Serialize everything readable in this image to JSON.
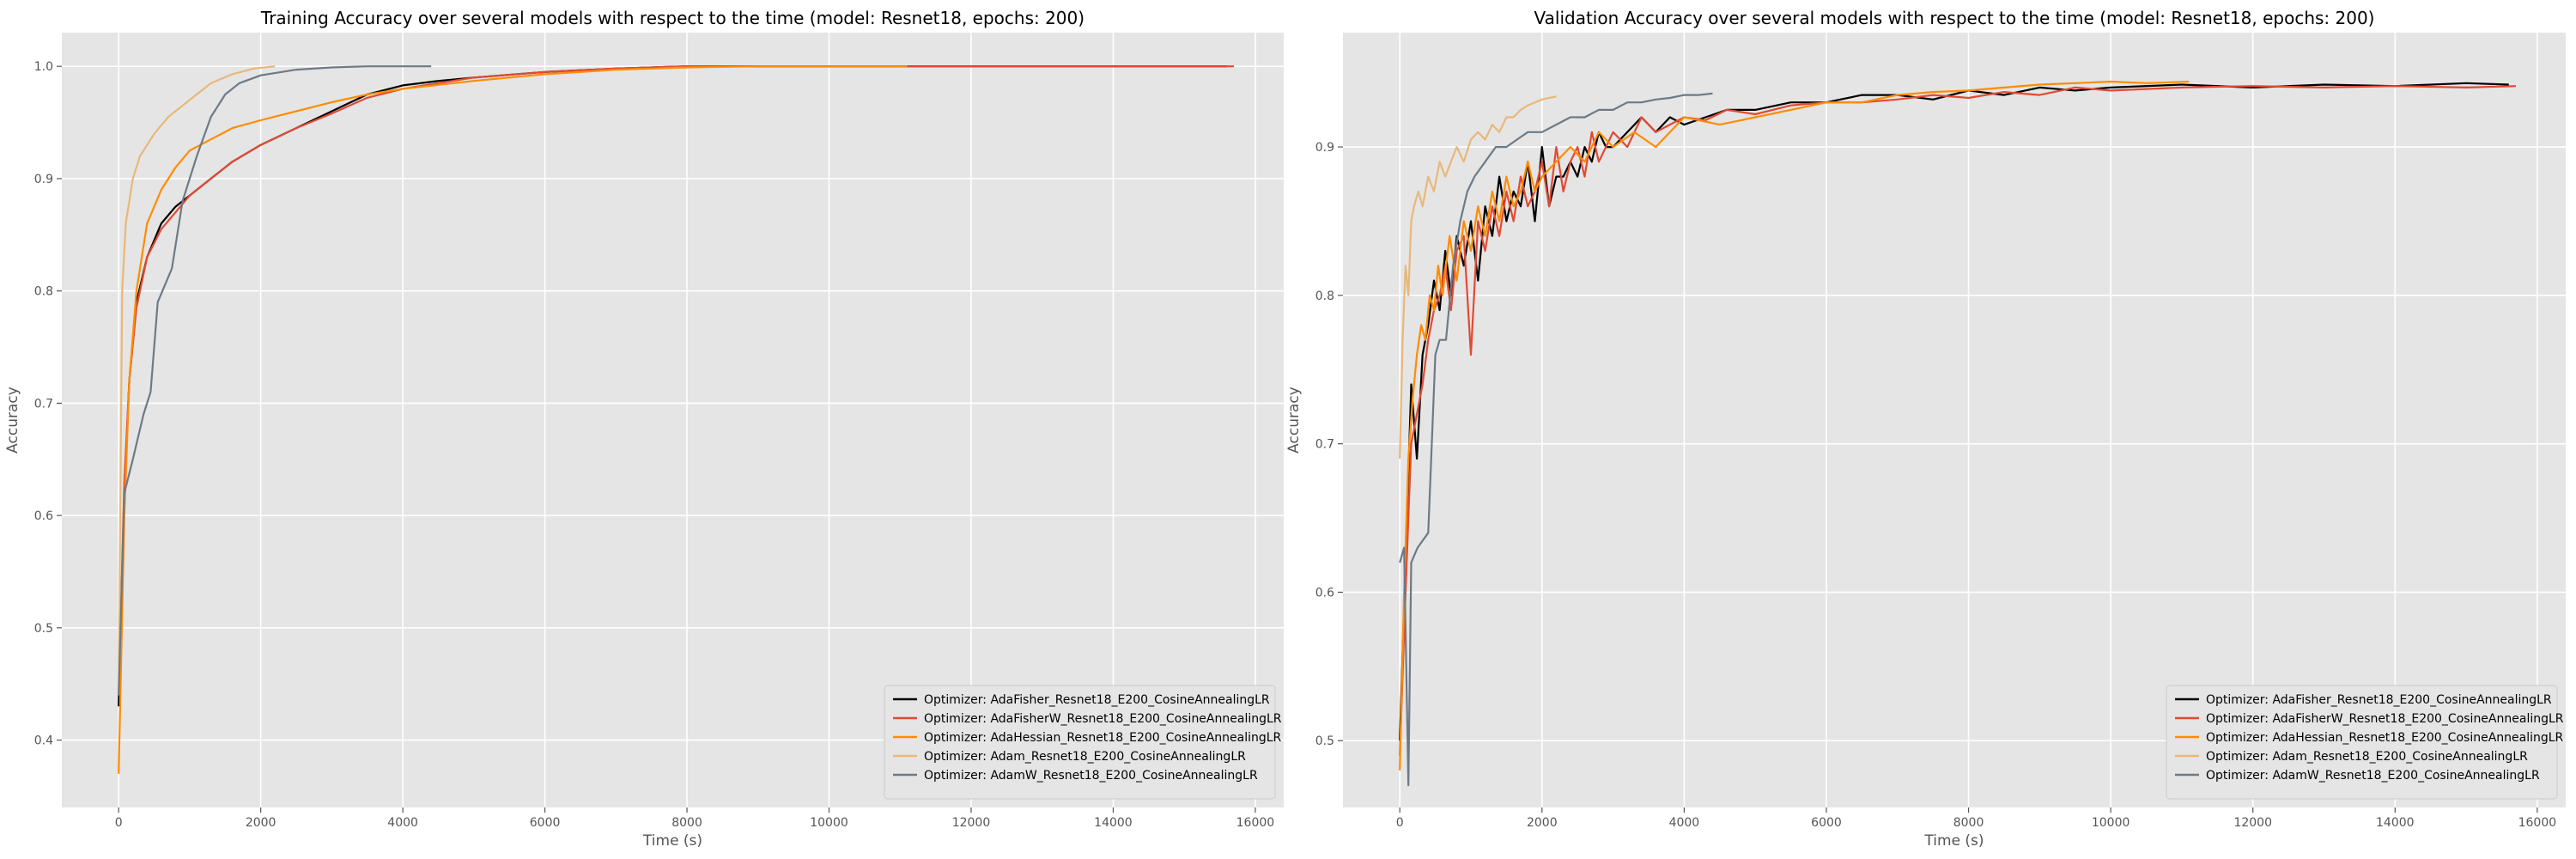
{
  "chart_data": [
    {
      "type": "line",
      "title": "Training Accuracy over several models with respect to the time (model: Resnet18, epochs: 200)",
      "xlabel": "Time (s)",
      "ylabel": "Accuracy",
      "xlim": [
        -800,
        16400
      ],
      "ylim": [
        0.34,
        1.03
      ],
      "xticks": [
        0,
        2000,
        4000,
        6000,
        8000,
        10000,
        12000,
        14000,
        16000
      ],
      "xtick_labels": [
        "0",
        "2000",
        "4000",
        "6000",
        "8000",
        "10000",
        "12000",
        "14000",
        "16000"
      ],
      "yticks": [
        0.4,
        0.5,
        0.6,
        0.7,
        0.8,
        0.9,
        1.0
      ],
      "ytick_labels": [
        "0.4",
        "0.5",
        "0.6",
        "0.7",
        "0.8",
        "0.9",
        "1.0"
      ],
      "grid": true,
      "legend_position": "bottom-right",
      "series": [
        {
          "name": "Optimizer: AdaFisher_Resnet18_E200_CosineAnnealingLR",
          "color": "#000000",
          "x": [
            0,
            80,
            150,
            250,
            400,
            600,
            800,
            1000,
            1300,
            1600,
            2000,
            2500,
            3000,
            3500,
            4000,
            4500,
            5000,
            6000,
            7000,
            8000,
            10000,
            12000,
            15600
          ],
          "y": [
            0.43,
            0.62,
            0.72,
            0.79,
            0.83,
            0.86,
            0.875,
            0.885,
            0.9,
            0.915,
            0.93,
            0.945,
            0.96,
            0.975,
            0.983,
            0.987,
            0.99,
            0.995,
            0.998,
            1.0,
            1.0,
            1.0,
            1.0
          ]
        },
        {
          "name": "Optimizer: AdaFisherW_Resnet18_E200_CosineAnnealingLR",
          "color": "#e24a33",
          "x": [
            0,
            80,
            150,
            250,
            400,
            600,
            800,
            1000,
            1300,
            1600,
            2000,
            2500,
            3000,
            3500,
            4000,
            4500,
            5000,
            6000,
            7000,
            8000,
            10000,
            12000,
            15700
          ],
          "y": [
            0.44,
            0.63,
            0.72,
            0.785,
            0.83,
            0.855,
            0.87,
            0.885,
            0.9,
            0.915,
            0.93,
            0.945,
            0.958,
            0.972,
            0.98,
            0.985,
            0.99,
            0.995,
            0.998,
            1.0,
            1.0,
            1.0,
            1.0
          ]
        },
        {
          "name": "Optimizer: AdaHessian_Resnet18_E200_CosineAnnealingLR",
          "color": "#ff8c00",
          "x": [
            0,
            80,
            150,
            250,
            400,
            600,
            800,
            1000,
            1300,
            1600,
            2000,
            2500,
            3000,
            3500,
            4000,
            5000,
            6000,
            7000,
            8000,
            9000,
            10000,
            11100
          ],
          "y": [
            0.37,
            0.6,
            0.72,
            0.8,
            0.86,
            0.89,
            0.91,
            0.925,
            0.935,
            0.945,
            0.952,
            0.96,
            0.968,
            0.975,
            0.98,
            0.987,
            0.993,
            0.997,
            0.999,
            1.0,
            1.0,
            1.0
          ]
        },
        {
          "name": "Optimizer: Adam_Resnet18_E200_CosineAnnealingLR",
          "color": "#e8b87a",
          "x": [
            0,
            50,
            100,
            200,
            300,
            500,
            700,
            1000,
            1300,
            1600,
            1900,
            2200
          ],
          "y": [
            0.44,
            0.8,
            0.86,
            0.9,
            0.92,
            0.94,
            0.955,
            0.97,
            0.985,
            0.993,
            0.998,
            1.0
          ]
        },
        {
          "name": "Optimizer: AdamW_Resnet18_E200_CosineAnnealingLR",
          "color": "#6d7a86",
          "x": [
            0,
            80,
            200,
            350,
            450,
            550,
            750,
            900,
            1100,
            1300,
            1500,
            1700,
            2000,
            2500,
            3000,
            3500,
            4400
          ],
          "y": [
            0.44,
            0.62,
            0.65,
            0.69,
            0.71,
            0.79,
            0.82,
            0.88,
            0.92,
            0.955,
            0.975,
            0.985,
            0.992,
            0.997,
            0.999,
            1.0,
            1.0
          ]
        }
      ]
    },
    {
      "type": "line",
      "title": "Validation Accuracy over several models with respect to the time (model: Resnet18, epochs: 200)",
      "xlabel": "Time (s)",
      "ylabel": "Accuracy",
      "xlim": [
        -800,
        16400
      ],
      "ylim": [
        0.455,
        0.977
      ],
      "xticks": [
        0,
        2000,
        4000,
        6000,
        8000,
        10000,
        12000,
        14000,
        16000
      ],
      "xtick_labels": [
        "0",
        "2000",
        "4000",
        "6000",
        "8000",
        "10000",
        "12000",
        "14000",
        "16000"
      ],
      "yticks": [
        0.5,
        0.6,
        0.7,
        0.8,
        0.9
      ],
      "ytick_labels": [
        "0.5",
        "0.6",
        "0.7",
        "0.8",
        "0.9"
      ],
      "grid": true,
      "legend_position": "bottom-right",
      "series": [
        {
          "name": "Optimizer: AdaFisher_Resnet18_E200_CosineAnnealingLR",
          "color": "#000000",
          "x": [
            0,
            80,
            160,
            240,
            320,
            400,
            480,
            560,
            640,
            720,
            800,
            900,
            1000,
            1100,
            1200,
            1300,
            1400,
            1500,
            1600,
            1700,
            1800,
            1900,
            2000,
            2100,
            2200,
            2300,
            2400,
            2500,
            2600,
            2700,
            2800,
            2900,
            3000,
            3200,
            3400,
            3600,
            3800,
            4000,
            4300,
            4600,
            5000,
            5500,
            6000,
            6500,
            7000,
            7500,
            8000,
            8500,
            9000,
            9500,
            10000,
            11000,
            12000,
            13000,
            14000,
            15000,
            15600
          ],
          "y": [
            0.5,
            0.62,
            0.74,
            0.69,
            0.76,
            0.78,
            0.81,
            0.79,
            0.83,
            0.8,
            0.84,
            0.82,
            0.85,
            0.81,
            0.86,
            0.84,
            0.88,
            0.85,
            0.87,
            0.86,
            0.89,
            0.85,
            0.9,
            0.86,
            0.88,
            0.88,
            0.89,
            0.88,
            0.9,
            0.89,
            0.91,
            0.9,
            0.9,
            0.91,
            0.92,
            0.91,
            0.92,
            0.915,
            0.92,
            0.925,
            0.925,
            0.93,
            0.93,
            0.935,
            0.935,
            0.932,
            0.938,
            0.935,
            0.94,
            0.938,
            0.94,
            0.942,
            0.94,
            0.942,
            0.941,
            0.943,
            0.942
          ]
        },
        {
          "name": "Optimizer: AdaFisherW_Resnet18_E200_CosineAnnealingLR",
          "color": "#e24a33",
          "x": [
            0,
            80,
            160,
            240,
            320,
            400,
            480,
            560,
            640,
            720,
            800,
            900,
            1000,
            1100,
            1200,
            1300,
            1400,
            1500,
            1600,
            1700,
            1800,
            1900,
            2000,
            2100,
            2200,
            2300,
            2400,
            2500,
            2600,
            2700,
            2800,
            2900,
            3000,
            3200,
            3400,
            3600,
            3800,
            4000,
            4300,
            4600,
            5000,
            5500,
            6000,
            6500,
            7000,
            7500,
            8000,
            8500,
            9000,
            9500,
            10000,
            11000,
            12000,
            13000,
            14000,
            15000,
            15700
          ],
          "y": [
            0.49,
            0.6,
            0.7,
            0.72,
            0.74,
            0.77,
            0.79,
            0.8,
            0.82,
            0.79,
            0.83,
            0.84,
            0.76,
            0.85,
            0.83,
            0.86,
            0.84,
            0.87,
            0.85,
            0.88,
            0.86,
            0.87,
            0.89,
            0.86,
            0.9,
            0.87,
            0.89,
            0.9,
            0.88,
            0.91,
            0.89,
            0.9,
            0.91,
            0.9,
            0.92,
            0.91,
            0.915,
            0.92,
            0.918,
            0.925,
            0.922,
            0.928,
            0.93,
            0.93,
            0.932,
            0.935,
            0.933,
            0.937,
            0.935,
            0.94,
            0.938,
            0.94,
            0.941,
            0.94,
            0.941,
            0.94,
            0.941
          ]
        },
        {
          "name": "Optimizer: AdaHessian_Resnet18_E200_CosineAnnealingLR",
          "color": "#ff8c00",
          "x": [
            0,
            60,
            120,
            180,
            240,
            300,
            360,
            420,
            480,
            540,
            600,
            700,
            800,
            900,
            1000,
            1100,
            1200,
            1300,
            1400,
            1500,
            1600,
            1700,
            1800,
            1900,
            2000,
            2200,
            2400,
            2600,
            2800,
            3000,
            3300,
            3600,
            4000,
            4500,
            5000,
            5500,
            6000,
            6500,
            7000,
            7500,
            8000,
            8500,
            9000,
            9500,
            10000,
            10500,
            11100
          ],
          "y": [
            0.48,
            0.6,
            0.69,
            0.73,
            0.76,
            0.78,
            0.77,
            0.8,
            0.79,
            0.82,
            0.8,
            0.84,
            0.81,
            0.85,
            0.83,
            0.86,
            0.84,
            0.87,
            0.85,
            0.88,
            0.86,
            0.87,
            0.89,
            0.87,
            0.88,
            0.89,
            0.9,
            0.89,
            0.91,
            0.9,
            0.91,
            0.9,
            0.92,
            0.915,
            0.92,
            0.925,
            0.93,
            0.93,
            0.935,
            0.937,
            0.938,
            0.94,
            0.942,
            0.943,
            0.944,
            0.943,
            0.944
          ]
        },
        {
          "name": "Optimizer: Adam_Resnet18_E200_CosineAnnealingLR",
          "color": "#e8b87a",
          "x": [
            0,
            40,
            80,
            120,
            160,
            200,
            260,
            320,
            400,
            480,
            560,
            640,
            720,
            800,
            900,
            1000,
            1100,
            1200,
            1300,
            1400,
            1500,
            1600,
            1700,
            1800,
            1900,
            2000,
            2100,
            2200
          ],
          "y": [
            0.69,
            0.77,
            0.82,
            0.8,
            0.85,
            0.86,
            0.87,
            0.86,
            0.88,
            0.87,
            0.89,
            0.88,
            0.89,
            0.9,
            0.89,
            0.905,
            0.91,
            0.905,
            0.915,
            0.91,
            0.92,
            0.92,
            0.925,
            0.928,
            0.93,
            0.932,
            0.933,
            0.934
          ]
        },
        {
          "name": "Optimizer: AdamW_Resnet18_E200_CosineAnnealingLR",
          "color": "#6d7a86",
          "x": [
            0,
            60,
            120,
            160,
            250,
            400,
            500,
            560,
            650,
            750,
            850,
            950,
            1050,
            1200,
            1350,
            1500,
            1650,
            1800,
            2000,
            2200,
            2400,
            2600,
            2800,
            3000,
            3200,
            3400,
            3600,
            3800,
            4000,
            4200,
            4400
          ],
          "y": [
            0.62,
            0.63,
            0.47,
            0.62,
            0.63,
            0.64,
            0.76,
            0.77,
            0.77,
            0.82,
            0.85,
            0.87,
            0.88,
            0.89,
            0.9,
            0.9,
            0.905,
            0.91,
            0.91,
            0.915,
            0.92,
            0.92,
            0.925,
            0.925,
            0.93,
            0.93,
            0.932,
            0.933,
            0.935,
            0.935,
            0.936
          ]
        }
      ]
    }
  ]
}
